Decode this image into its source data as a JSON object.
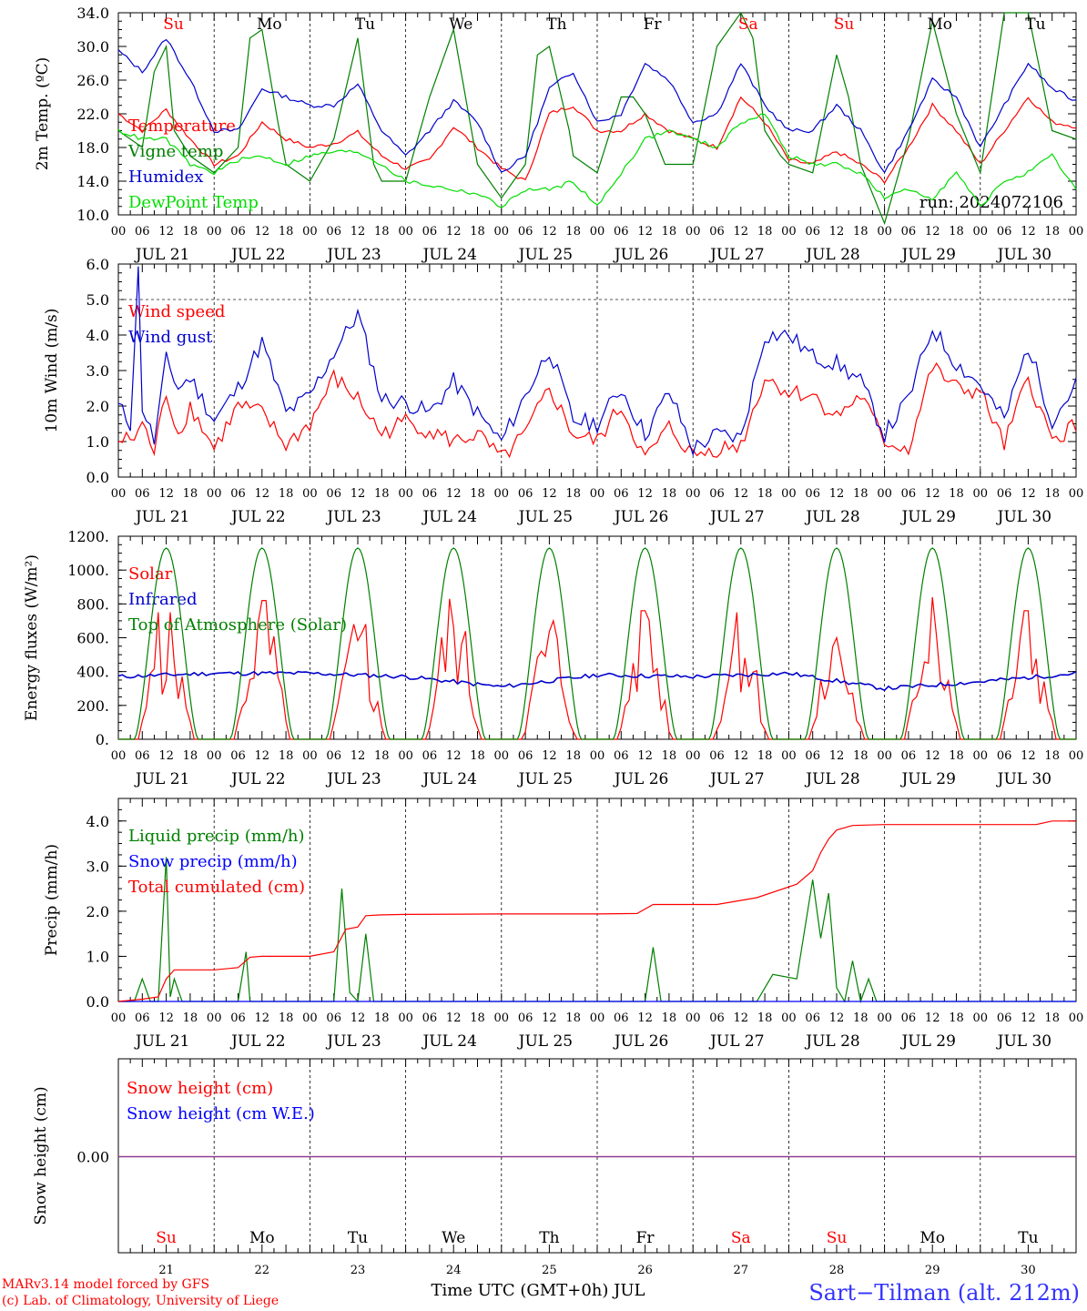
{
  "meta": {
    "run_label": "run: 2024072106",
    "footer_model": "MARv3.14 model forced by GFS",
    "footer_lab": "(c) Lab. of Climatology, University of Liege",
    "footer_axis": "Time UTC (GMT+0h) JUL",
    "station": "Sart−Tilman (alt. 212m)"
  },
  "days": {
    "dates": [
      "JUL 21",
      "JUL 22",
      "JUL 23",
      "JUL 24",
      "JUL 25",
      "JUL 26",
      "JUL 27",
      "JUL 28",
      "JUL 29",
      "JUL 30"
    ],
    "day_numbers": [
      "21",
      "22",
      "23",
      "24",
      "25",
      "26",
      "27",
      "28",
      "29",
      "30"
    ],
    "weekdays": [
      "Su",
      "Mo",
      "Tu",
      "We",
      "Th",
      "Fr",
      "Sa",
      "Su",
      "Mo",
      "Tu"
    ],
    "hour_ticks": [
      "00",
      "06",
      "12",
      "18"
    ],
    "final_tick": "00",
    "weekend_color": "#ff0000",
    "weekday_color": "#000000"
  },
  "chart_data": [
    {
      "type": "line",
      "ylabel": "2m Temp. (ºC)",
      "ylim": [
        10,
        34
      ],
      "yticks": [
        "10.0",
        "14.0",
        "18.0",
        "22.0",
        "26.0",
        "30.0",
        "34.0"
      ],
      "x_unit": "hours since JUL 21 00 UTC",
      "series": [
        {
          "name": "Temperature",
          "color": "#ff0000",
          "x": [
            0,
            6,
            12,
            18,
            24,
            30,
            36,
            42,
            48,
            54,
            60,
            66,
            72,
            78,
            84,
            90,
            96,
            102,
            108,
            114,
            120,
            126,
            132,
            138,
            144,
            150,
            156,
            162,
            168,
            174,
            180,
            186,
            192,
            198,
            204,
            210,
            216,
            222,
            228,
            234,
            240
          ],
          "values": [
            22,
            20,
            22.5,
            19,
            16,
            17,
            21,
            19,
            18,
            18.5,
            19.8,
            17,
            15.5,
            16.5,
            20.5,
            18,
            15.5,
            14,
            22,
            23,
            20,
            20,
            22,
            20,
            19,
            18,
            24,
            21,
            16.5,
            16,
            17.5,
            16,
            14,
            18,
            23,
            20,
            16,
            20,
            24,
            21,
            20.5
          ]
        },
        {
          "name": "Vigne temp",
          "color": "#008000",
          "x": [
            0,
            6,
            9,
            12,
            14,
            18,
            24,
            30,
            33,
            36,
            40,
            42,
            48,
            54,
            57,
            60,
            64,
            66,
            72,
            78,
            84,
            90,
            96,
            102,
            105,
            108,
            113,
            114,
            120,
            126,
            129,
            132,
            137,
            138,
            144,
            150,
            156,
            159,
            162,
            166,
            168,
            174,
            180,
            183,
            186,
            192,
            198,
            204,
            210,
            216,
            222,
            228,
            234,
            240
          ],
          "values": [
            20,
            18,
            27,
            30,
            20,
            17,
            15,
            18,
            31,
            32,
            21,
            16,
            14,
            19,
            25,
            31,
            16,
            14,
            14,
            24,
            32,
            16,
            12,
            16,
            29,
            30,
            20,
            17,
            15,
            24,
            24,
            22,
            16,
            16,
            16,
            30,
            34,
            31,
            20,
            17,
            16,
            15,
            29,
            24,
            16,
            9,
            19,
            33,
            22,
            15,
            34,
            34,
            20,
            19
          ]
        },
        {
          "name": "Humidex",
          "color": "#0000cc",
          "x": [
            0,
            6,
            12,
            18,
            24,
            30,
            36,
            42,
            48,
            54,
            60,
            66,
            72,
            78,
            84,
            90,
            96,
            102,
            108,
            114,
            120,
            126,
            132,
            138,
            144,
            150,
            156,
            162,
            168,
            174,
            180,
            186,
            192,
            198,
            204,
            210,
            216,
            222,
            228,
            234,
            240
          ],
          "values": [
            29.5,
            27,
            31,
            26,
            20,
            20,
            25,
            24,
            23,
            23,
            25.5,
            20,
            17,
            20,
            23.5,
            21,
            15,
            17,
            25,
            27,
            21,
            22,
            28,
            26,
            21,
            22,
            28,
            23,
            20,
            20,
            23,
            20,
            15,
            20,
            26,
            24,
            18,
            23,
            28,
            25,
            23.5
          ]
        },
        {
          "name": "DewPoint Temp",
          "color": "#00dd00",
          "x": [
            0,
            6,
            12,
            18,
            24,
            30,
            36,
            42,
            48,
            54,
            60,
            66,
            72,
            78,
            84,
            90,
            96,
            102,
            108,
            114,
            120,
            126,
            132,
            138,
            144,
            150,
            156,
            162,
            168,
            174,
            180,
            186,
            192,
            198,
            204,
            210,
            216,
            222,
            228,
            234,
            240
          ],
          "values": [
            20,
            19,
            19,
            16,
            15,
            16.5,
            17,
            16,
            17,
            17.5,
            17.5,
            16,
            14,
            13.5,
            13,
            12.5,
            11,
            13,
            13,
            14,
            11,
            15,
            19,
            20,
            19,
            18,
            21,
            22,
            17,
            16,
            16,
            15,
            12,
            13,
            12,
            15,
            11,
            14,
            15,
            17,
            13
          ]
        }
      ]
    },
    {
      "type": "line",
      "ylabel": "10m Wind (m/s)",
      "ylim": [
        0,
        6
      ],
      "yticks": [
        "0.0",
        "1.0",
        "2.0",
        "3.0",
        "4.0",
        "5.0",
        "6.0"
      ],
      "dashed_level": 5,
      "x_unit": "hours since JUL 21 00 UTC",
      "series": [
        {
          "name": "Wind speed",
          "color": "#ff0000",
          "x": [
            0,
            4,
            6,
            9,
            12,
            15,
            18,
            24,
            30,
            36,
            42,
            48,
            54,
            60,
            66,
            72,
            78,
            84,
            90,
            96,
            102,
            108,
            114,
            120,
            126,
            132,
            138,
            144,
            150,
            156,
            162,
            168,
            174,
            180,
            186,
            192,
            198,
            204,
            210,
            216,
            222,
            228,
            234,
            240
          ],
          "values": [
            1,
            1.1,
            1.5,
            0.7,
            2.4,
            1.2,
            2,
            0.8,
            2,
            1.8,
            0.9,
            1.5,
            2.8,
            2.2,
            1.2,
            1.6,
            1.3,
            1,
            1.2,
            0.5,
            1.2,
            2.5,
            1.2,
            1,
            2,
            0.5,
            1.4,
            0.6,
            0.8,
            0.9,
            2.8,
            2.4,
            2.3,
            1.7,
            2.3,
            1,
            0.8,
            3.1,
            2.5,
            2.4,
            0.9,
            2.8,
            1,
            1.5
          ]
        },
        {
          "name": "Wind gust",
          "color": "#0000cc",
          "x": [
            0,
            3,
            5,
            6,
            9,
            12,
            15,
            18,
            24,
            30,
            36,
            42,
            48,
            54,
            60,
            66,
            72,
            78,
            84,
            90,
            96,
            102,
            108,
            114,
            120,
            126,
            132,
            138,
            144,
            150,
            156,
            162,
            168,
            174,
            180,
            186,
            192,
            198,
            204,
            210,
            216,
            222,
            228,
            234,
            240
          ],
          "values": [
            2,
            1.5,
            5.8,
            2,
            1,
            3.3,
            2.5,
            2.8,
            1.6,
            2.5,
            3.8,
            1.8,
            2.3,
            3.5,
            4.6,
            2.2,
            2.1,
            1.8,
            2.7,
            1.8,
            1,
            2.3,
            3.6,
            1.6,
            1.5,
            2.5,
            1.2,
            2.4,
            0.8,
            1.2,
            1.1,
            4,
            4,
            3.4,
            3.2,
            2.7,
            1.2,
            2.2,
            4.2,
            3.2,
            2.6,
            1.6,
            3.7,
            1.6,
            2.6
          ]
        }
      ]
    },
    {
      "type": "line",
      "ylabel": "Energy fluxes (W/m²)",
      "ylim": [
        0,
        1200
      ],
      "yticks": [
        "0.",
        "200.",
        "400.",
        "600.",
        "800.",
        "1000.",
        "1200."
      ],
      "x_unit": "hours since JUL 21 00 UTC",
      "series": [
        {
          "name": "Solar",
          "color": "#ff0000",
          "peaks_hour_offset": [
            10,
            13,
            14,
            11,
            13,
            12,
            11,
            12,
            12,
            12
          ],
          "peaks": [
            750,
            820,
            680,
            830,
            700,
            760,
            750,
            600,
            840,
            760
          ]
        },
        {
          "name": "Infrared",
          "color": "#0000cc",
          "x": [
            0,
            24,
            48,
            72,
            96,
            120,
            144,
            168,
            192,
            216,
            240
          ],
          "values": [
            370,
            390,
            390,
            370,
            310,
            380,
            370,
            390,
            300,
            340,
            390
          ]
        },
        {
          "name": "Top of Atmosphere (Solar)",
          "color": "#008000",
          "peak": 1130,
          "daylight_start_hour": 4,
          "daylight_end_hour": 20
        }
      ]
    },
    {
      "type": "line",
      "ylabel": "Precip (mm/h)",
      "ylim": [
        0,
        4.5
      ],
      "yticks": [
        "0.0",
        "1.0",
        "2.0",
        "3.0",
        "4.0"
      ],
      "x_unit": "hours since JUL 21 00 UTC",
      "series": [
        {
          "name": "Liquid precip (mm/h)",
          "color": "#008000",
          "x": [
            0,
            4,
            6,
            8,
            10,
            12,
            13,
            14,
            16,
            18,
            24,
            30,
            32,
            33,
            34,
            36,
            48,
            54,
            56,
            58,
            60,
            62,
            64,
            66,
            72,
            96,
            120,
            132,
            134,
            136,
            138,
            160,
            164,
            170,
            174,
            176,
            178,
            180,
            182,
            184,
            186,
            188,
            190,
            192,
            240
          ],
          "values": [
            0,
            0,
            0.5,
            0,
            0,
            3.2,
            0.1,
            0.5,
            0,
            0,
            0,
            0,
            1.1,
            0,
            0,
            0,
            0,
            0,
            2.5,
            0.2,
            0,
            1.5,
            0,
            0,
            0,
            0,
            0,
            0,
            1.2,
            0,
            0,
            0,
            0.6,
            0.5,
            2.7,
            1.4,
            2.4,
            0.3,
            0,
            0.9,
            0,
            0.5,
            0,
            0,
            0
          ]
        },
        {
          "name": "Snow precip (mm/h)",
          "color": "#0000ff",
          "x": [
            0,
            240
          ],
          "values": [
            0,
            0
          ]
        },
        {
          "name": "Total cumulated (cm)",
          "color": "#ff0000",
          "x": [
            0,
            6,
            10,
            12,
            14,
            24,
            30,
            33,
            36,
            48,
            54,
            57,
            60,
            62,
            66,
            72,
            96,
            120,
            130,
            134,
            136,
            150,
            160,
            170,
            174,
            176,
            178,
            180,
            184,
            192,
            230,
            234,
            240
          ],
          "values": [
            0,
            0.05,
            0.1,
            0.5,
            0.7,
            0.7,
            0.75,
            0.98,
            1,
            1,
            1.1,
            1.6,
            1.65,
            1.9,
            1.92,
            1.93,
            1.94,
            1.94,
            1.95,
            2.15,
            2.15,
            2.15,
            2.3,
            2.6,
            2.9,
            3.3,
            3.6,
            3.8,
            3.9,
            3.92,
            3.92,
            4.0,
            4.0
          ]
        }
      ]
    },
    {
      "type": "line",
      "ylabel": "Snow height (cm)",
      "yticks": [
        "0.00"
      ],
      "x_unit": "hours since JUL 21 00 UTC",
      "series": [
        {
          "name": "Snow height (cm)",
          "color": "#ff0000",
          "x": [
            0,
            240
          ],
          "values": [
            0,
            0
          ]
        },
        {
          "name": "Snow height (cm W.E.)",
          "color": "#0000ff",
          "x": [
            0,
            240
          ],
          "values": [
            0,
            0
          ]
        }
      ]
    }
  ]
}
